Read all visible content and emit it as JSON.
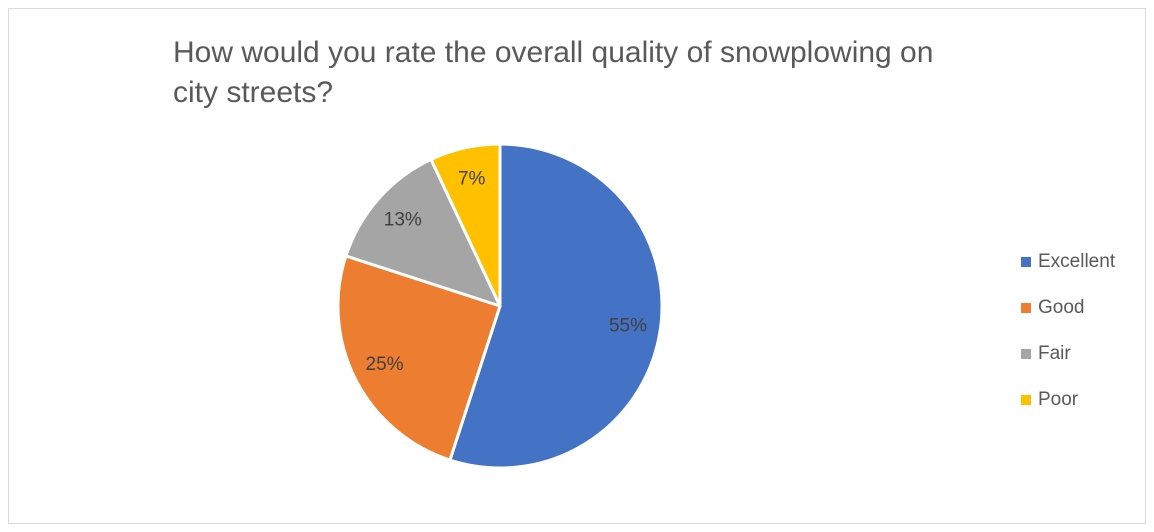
{
  "chart_data": {
    "type": "pie",
    "title": "How would you rate the overall quality of snowplowing on city streets?",
    "categories": [
      "Excellent",
      "Good",
      "Fair",
      "Poor"
    ],
    "values": [
      55,
      25,
      13,
      7
    ],
    "data_labels": [
      "55%",
      "25%",
      "13%",
      "7%"
    ],
    "colors": [
      "#4472C4",
      "#ED7D31",
      "#A5A5A5",
      "#FFC000"
    ],
    "legend_position": "right"
  }
}
